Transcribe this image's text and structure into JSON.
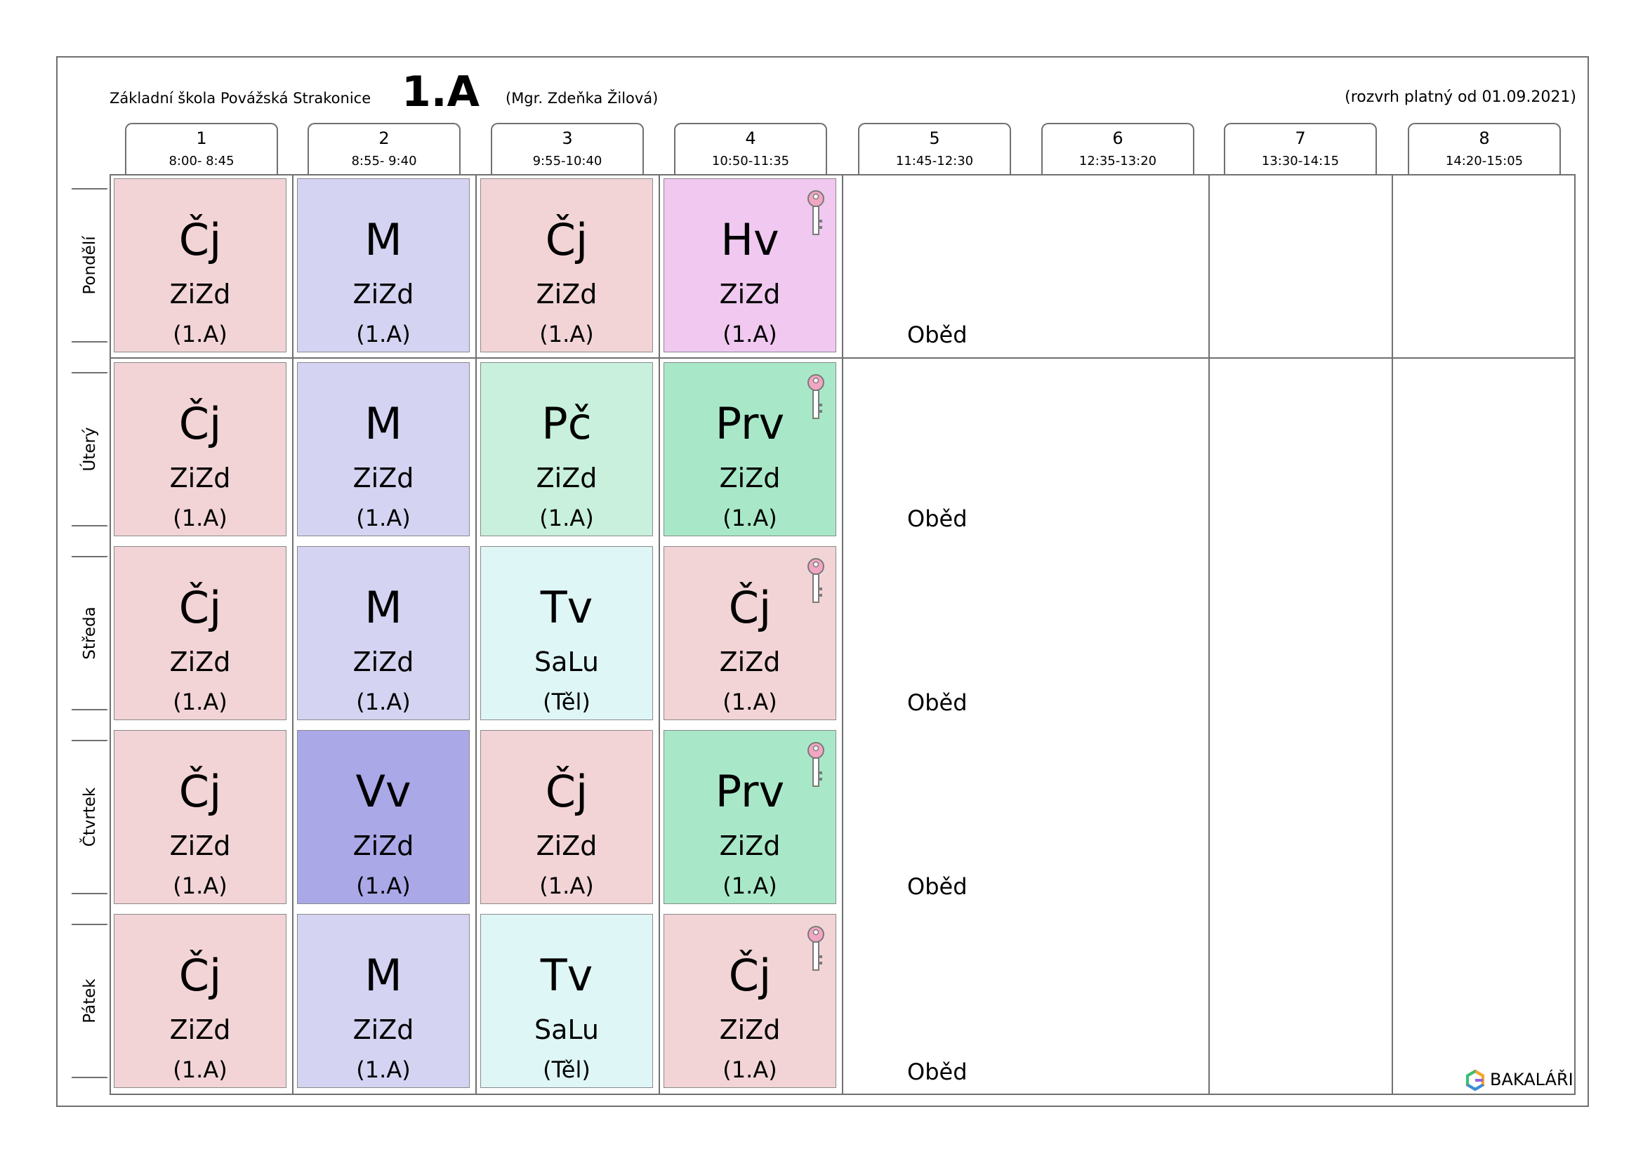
{
  "header": {
    "school": "Základní škola Povážská Strakonice",
    "class": "1.A",
    "teacher": "(Mgr. Zdeňka Žilová)",
    "valid_from": "(rozvrh platný od 01.09.2021)"
  },
  "periods": [
    {
      "num": "1",
      "time": "8:00- 8:45"
    },
    {
      "num": "2",
      "time": "8:55- 9:40"
    },
    {
      "num": "3",
      "time": "9:55-10:40"
    },
    {
      "num": "4",
      "time": "10:50-11:35"
    },
    {
      "num": "5",
      "time": "11:45-12:30"
    },
    {
      "num": "6",
      "time": "12:35-13:20"
    },
    {
      "num": "7",
      "time": "13:30-14:15"
    },
    {
      "num": "8",
      "time": "14:20-15:05"
    }
  ],
  "days": [
    {
      "name": "Pondělí",
      "break_label": "Oběd",
      "lessons": [
        {
          "subject": "Čj",
          "teacher": "ZiZd",
          "room": "(1.A)",
          "color": "#f2d4d6",
          "key": false
        },
        {
          "subject": "M",
          "teacher": "ZiZd",
          "room": "(1.A)",
          "color": "#d4d3f2",
          "key": false
        },
        {
          "subject": "Čj",
          "teacher": "ZiZd",
          "room": "(1.A)",
          "color": "#f2d4d6",
          "key": false
        },
        {
          "subject": "Hv",
          "teacher": "ZiZd",
          "room": "(1.A)",
          "color": "#f0c8f0",
          "key": true
        }
      ]
    },
    {
      "name": "Úterý",
      "break_label": "Oběd",
      "lessons": [
        {
          "subject": "Čj",
          "teacher": "ZiZd",
          "room": "(1.A)",
          "color": "#f2d4d6",
          "key": false
        },
        {
          "subject": "M",
          "teacher": "ZiZd",
          "room": "(1.A)",
          "color": "#d4d3f2",
          "key": false
        },
        {
          "subject": "Pč",
          "teacher": "ZiZd",
          "room": "(1.A)",
          "color": "#c8f0dc",
          "key": false
        },
        {
          "subject": "Prv",
          "teacher": "ZiZd",
          "room": "(1.A)",
          "color": "#a8e8c8",
          "key": true
        }
      ]
    },
    {
      "name": "Středa",
      "break_label": "Oběd",
      "lessons": [
        {
          "subject": "Čj",
          "teacher": "ZiZd",
          "room": "(1.A)",
          "color": "#f2d4d6",
          "key": false
        },
        {
          "subject": "M",
          "teacher": "ZiZd",
          "room": "(1.A)",
          "color": "#d4d3f2",
          "key": false
        },
        {
          "subject": "Tv",
          "teacher": "SaLu",
          "room": "(Těl)",
          "color": "#dff6f6",
          "key": false
        },
        {
          "subject": "Čj",
          "teacher": "ZiZd",
          "room": "(1.A)",
          "color": "#f2d4d6",
          "key": true
        }
      ]
    },
    {
      "name": "Čtvrtek",
      "break_label": "Oběd",
      "lessons": [
        {
          "subject": "Čj",
          "teacher": "ZiZd",
          "room": "(1.A)",
          "color": "#f2d4d6",
          "key": false
        },
        {
          "subject": "Vv",
          "teacher": "ZiZd",
          "room": "(1.A)",
          "color": "#aba8e8",
          "key": false
        },
        {
          "subject": "Čj",
          "teacher": "ZiZd",
          "room": "(1.A)",
          "color": "#f2d4d6",
          "key": false
        },
        {
          "subject": "Prv",
          "teacher": "ZiZd",
          "room": "(1.A)",
          "color": "#a8e8c8",
          "key": true
        }
      ]
    },
    {
      "name": "Pátek",
      "break_label": "Oběd",
      "lessons": [
        {
          "subject": "Čj",
          "teacher": "ZiZd",
          "room": "(1.A)",
          "color": "#f2d4d6",
          "key": false
        },
        {
          "subject": "M",
          "teacher": "ZiZd",
          "room": "(1.A)",
          "color": "#d4d3f2",
          "key": false
        },
        {
          "subject": "Tv",
          "teacher": "SaLu",
          "room": "(Těl)",
          "color": "#dff6f6",
          "key": false
        },
        {
          "subject": "Čj",
          "teacher": "ZiZd",
          "room": "(1.A)",
          "color": "#f2d4d6",
          "key": true
        }
      ]
    }
  ],
  "logo": {
    "name": "BAKALÁŘI",
    "icon": "bakalari-hexagon-icon"
  },
  "colors": {
    "border": "#707070",
    "key_pink": "#f2a6c2",
    "key_gray": "#9a9a9a"
  }
}
